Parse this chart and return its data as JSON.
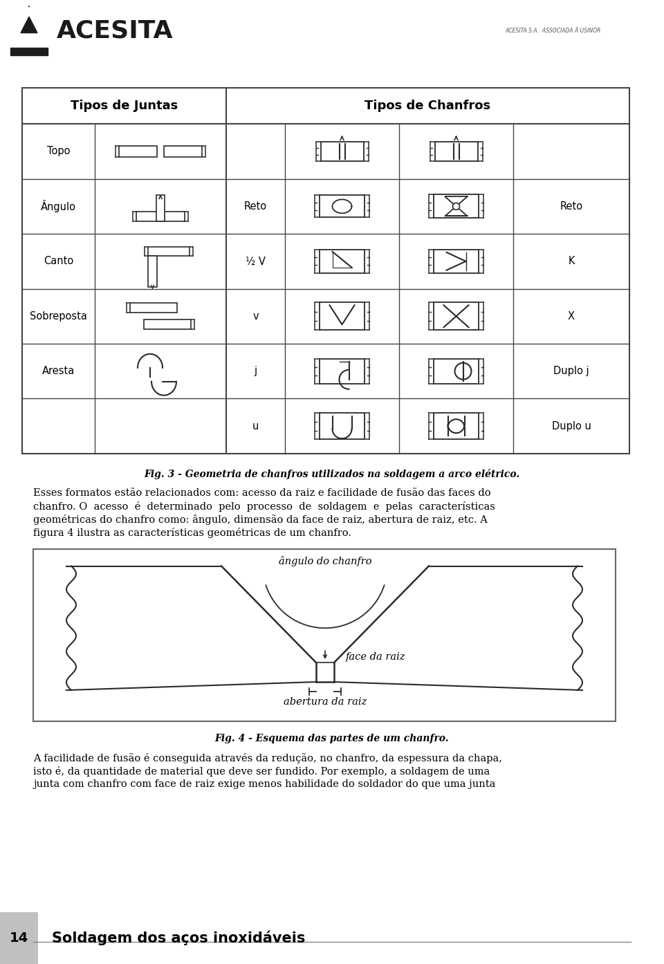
{
  "header_bg": "#d4d4d4",
  "page_bg": "#ffffff",
  "logo_text": "ACESITA",
  "subtitle_text": "ACESITA S.A.  ASSOCIADA À USINOR",
  "table_title1": "Tipos de Juntas",
  "table_title2": "Tipos de Chanfros",
  "fig3_caption": "Fig. 3 - Geometria de chanfros utilizados na soldagem a arco elétrico.",
  "para1_line1": "Esses formatos estão relacionados com: acesso da raiz e facilidade de fusão das faces do",
  "para1_line2": "chanfro. O  acesso  é  determinado  pelo  processo  de  soldagem  e  pelas  características",
  "para1_line3": "geométricas do chanfro como: ângulo, dimensão da face de raiz, abertura de raiz, etc. A",
  "para1_line4": "figura 4 ilustra as características geométricas de um chanfro.",
  "label_angulo_chanfro": "ângulo do chanfro",
  "label_face_raiz": "face da raiz",
  "label_abertura_raiz": "abertura da raiz",
  "fig4_caption": "Fig. 4 - Esquema das partes de um chanfro.",
  "para2_line1": "A facilidade de fusão é conseguida através da redução, no chanfro, da espessura da chapa,",
  "para2_line2": "isto é, da quantidade de material que deve ser fundido. Por exemplo, a soldagem de uma",
  "para2_line3": "junta com chanfro com face de raiz exige menos habilidade do soldador do que uma junta",
  "footer_num": "14",
  "footer_text": "Soldagem dos aços inoxidáveis",
  "footer_bg": "#c0c0c0",
  "lc": "#2a2a2a",
  "tc": "#444444"
}
